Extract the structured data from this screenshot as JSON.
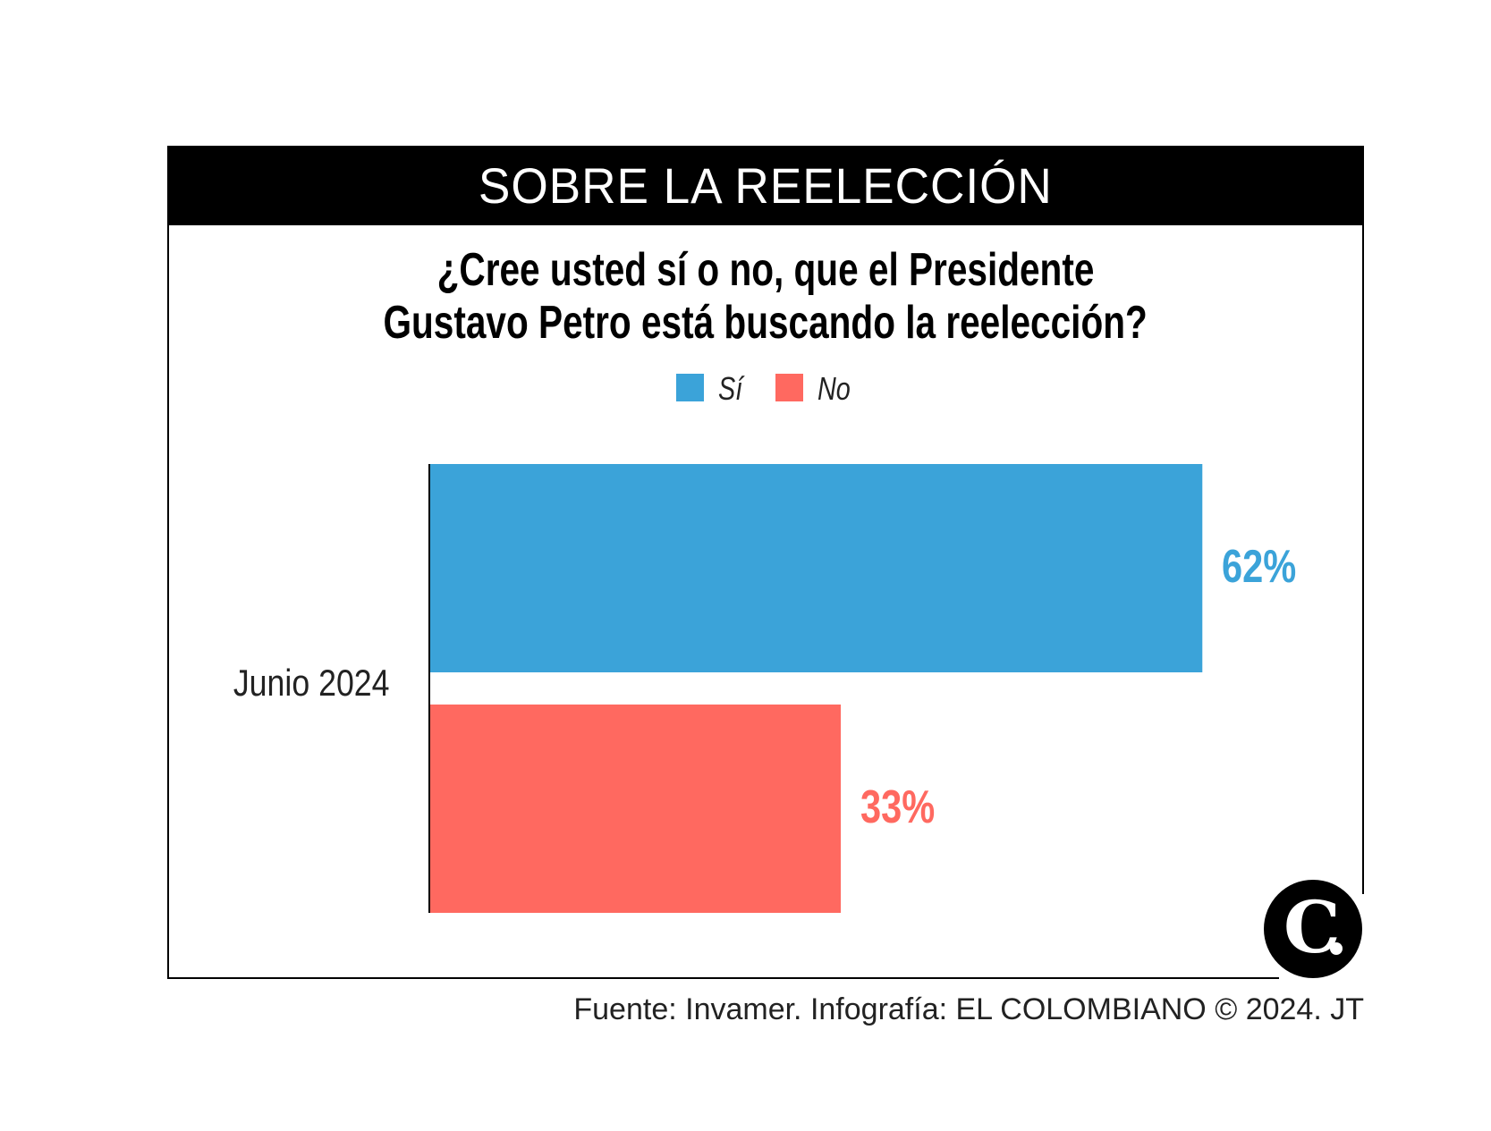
{
  "header": {
    "title": "SOBRE LA REELECCIÓN"
  },
  "chart_data": {
    "type": "bar",
    "orientation": "horizontal",
    "title": "¿Cree usted sí o no, que el Presidente Gustavo Petro está buscando la reelección?",
    "title_lines": [
      "¿Cree usted sí o no, que el Presidente",
      "Gustavo Petro está buscando la reelección?"
    ],
    "categories": [
      "Junio 2024"
    ],
    "series": [
      {
        "name": "Sí",
        "values": [
          62
        ],
        "label": "62%",
        "color": "#3ba3d9"
      },
      {
        "name": "No",
        "values": [
          33
        ],
        "label": "33%",
        "color": "#ff6960"
      }
    ],
    "xlim": [
      0,
      100
    ],
    "unit": "%",
    "legend": "top-center",
    "grid": false
  },
  "footer": {
    "source": "Fuente: Invamer. Infografía: EL COLOMBIANO © 2024. JT"
  },
  "logo": {
    "text": "C.",
    "name": "El Colombiano logo"
  }
}
